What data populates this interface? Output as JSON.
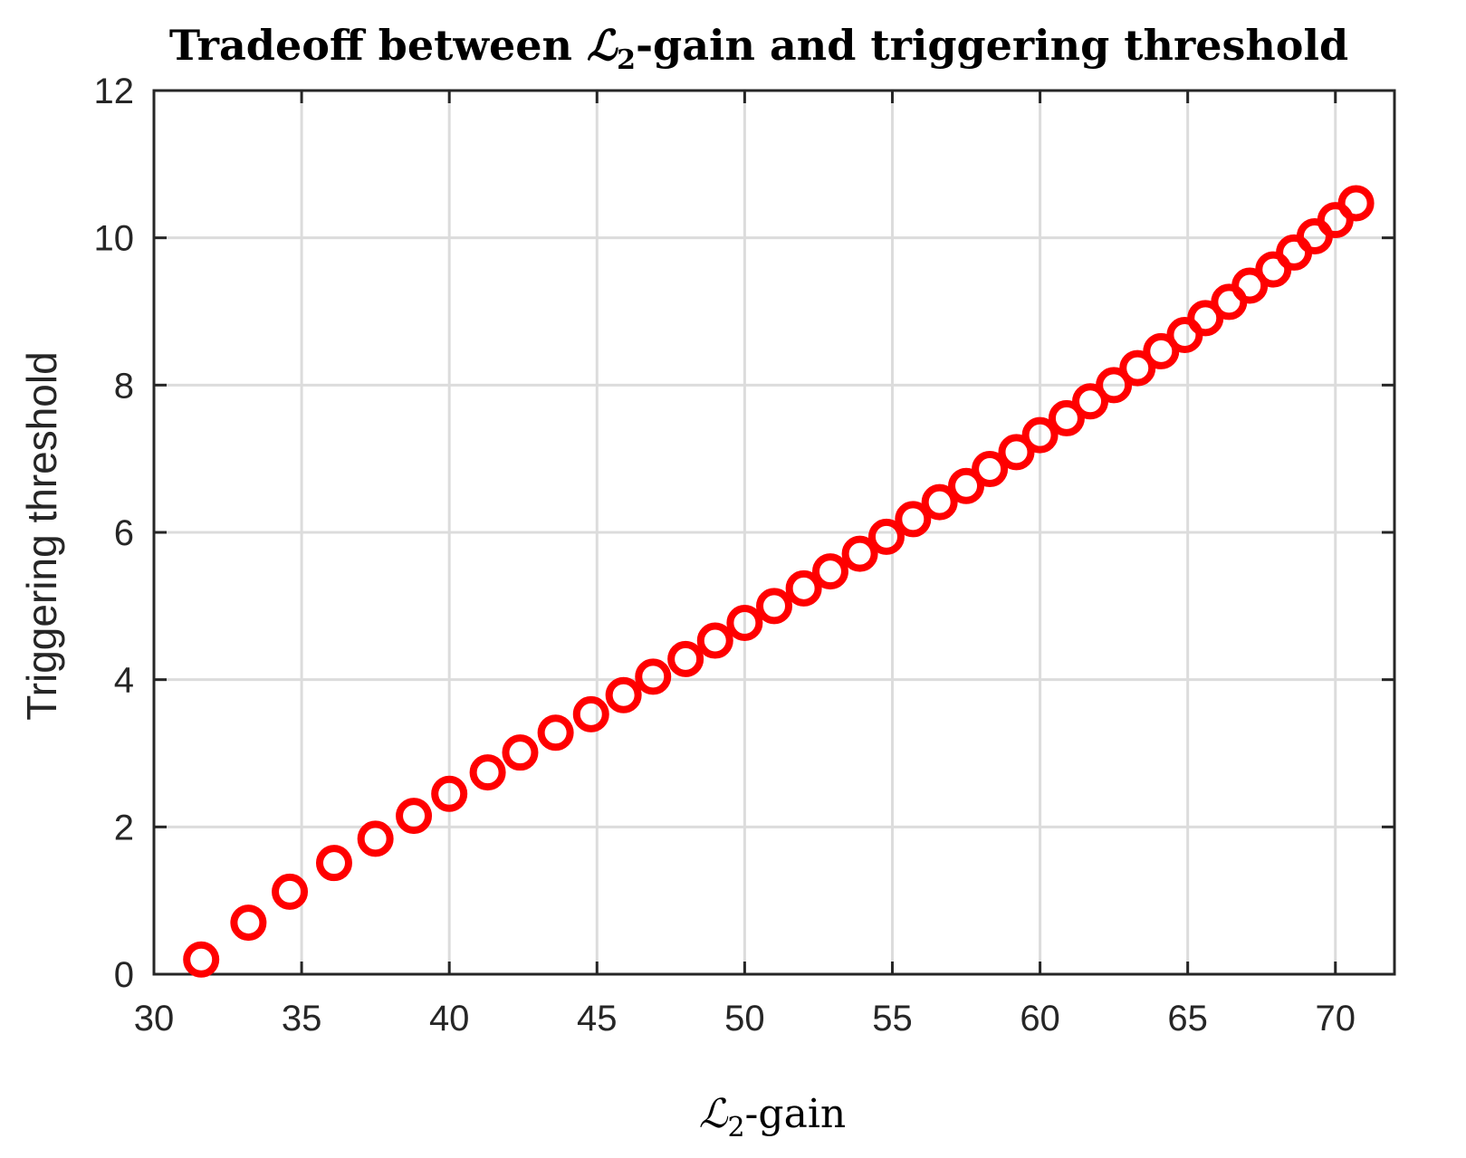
{
  "chart_data": {
    "type": "scatter",
    "title": {
      "prefix": "Tradeoff between ",
      "symbol": "ℒ",
      "subscript": "2",
      "suffix": "-gain and triggering threshold"
    },
    "xlabel": {
      "symbol": "ℒ",
      "subscript": "2",
      "suffix": "-gain"
    },
    "ylabel": "Triggering threshold",
    "xlim": [
      30,
      72
    ],
    "ylim": [
      0,
      12
    ],
    "xticks": [
      30,
      35,
      40,
      45,
      50,
      55,
      60,
      65,
      70
    ],
    "yticks": [
      0,
      2,
      4,
      6,
      8,
      10,
      12
    ],
    "grid": true,
    "legend": "none",
    "marker": "open-circle",
    "marker_color": "#ff0000",
    "series": [
      {
        "x": [
          31.6,
          33.2,
          34.6,
          36.1,
          37.5,
          38.8,
          40.0,
          41.3,
          42.4,
          43.6,
          44.8,
          45.9,
          46.9,
          48.0,
          49.0,
          50.0,
          51.0,
          52.0,
          52.9,
          53.9,
          54.8,
          55.7,
          56.6,
          57.5,
          58.3,
          59.2,
          60.0,
          60.9,
          61.7,
          62.5,
          63.3,
          64.1,
          64.9,
          65.6,
          66.4,
          67.1,
          67.9,
          68.6,
          69.3,
          70.0,
          70.7
        ],
        "y": [
          0.2,
          0.7,
          1.12,
          1.51,
          1.84,
          2.15,
          2.45,
          2.74,
          3.01,
          3.28,
          3.53,
          3.79,
          4.04,
          4.28,
          4.53,
          4.77,
          5.0,
          5.24,
          5.47,
          5.71,
          5.94,
          6.18,
          6.41,
          6.63,
          6.86,
          7.09,
          7.32,
          7.55,
          7.78,
          8.0,
          8.23,
          8.46,
          8.68,
          8.91,
          9.13,
          9.35,
          9.57,
          9.8,
          10.02,
          10.24,
          10.47
        ]
      }
    ]
  }
}
